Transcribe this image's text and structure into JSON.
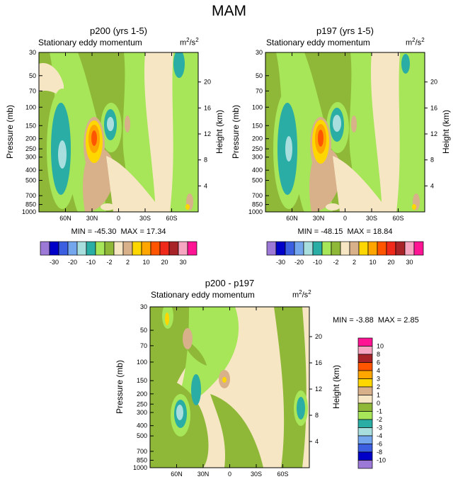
{
  "figure": {
    "title": "MAM"
  },
  "palette": [
    "#9c79d6",
    "#0000c8",
    "#3b5fe0",
    "#74a6ee",
    "#a9dede",
    "#2aada5",
    "#a6e658",
    "#8fb838",
    "#f6e6c4",
    "#d8b08a",
    "#ffd700",
    "#ffa500",
    "#ff5500",
    "#f02a1b",
    "#a82327",
    "#f7a6c2",
    "#ff1493"
  ],
  "chart_data": [
    {
      "type": "heatmap",
      "id": "p200",
      "title": "p200 (yrs 1-5)",
      "left_string": "Stationary eddy momentum",
      "units": "m2/s2",
      "units_base": "m",
      "units_exp": "2",
      "units_mid": "/s",
      "units_exp2": "2",
      "xlabel": "",
      "ylabel": "Pressure (mb)",
      "y2label": "Height (km)",
      "x_ticks": [
        "60N",
        "30N",
        "0",
        "30S",
        "60S"
      ],
      "x_values": [
        60,
        30,
        0,
        -30,
        -60
      ],
      "xlim": [
        90,
        -90
      ],
      "y_ticks": [
        "30",
        "50",
        "70",
        "100",
        "150",
        "200",
        "250",
        "300",
        "400",
        "500",
        "700",
        "850",
        "1000"
      ],
      "y_values": [
        30,
        50,
        70,
        100,
        150,
        200,
        250,
        300,
        400,
        500,
        700,
        850,
        1000
      ],
      "ylim": [
        1000,
        30
      ],
      "height_ticks": [
        "20",
        "16",
        "12",
        "8",
        "4"
      ],
      "height_values": [
        20,
        16,
        12,
        8,
        4
      ],
      "min": -45.3,
      "max": 17.34,
      "min_label": "MIN = -45.30",
      "max_label": "MAX =  17.34",
      "features": [
        {
          "lat": 65,
          "p": 250,
          "value": -10
        },
        {
          "lat": 28,
          "p": 200,
          "value": 20
        },
        {
          "lat": 15,
          "p": 150,
          "value": -10
        }
      ]
    },
    {
      "type": "heatmap",
      "id": "p197",
      "title": "p197 (yrs 1-5)",
      "left_string": "Stationary eddy momentum",
      "units": "m2/s2",
      "units_base": "m",
      "units_exp": "2",
      "units_mid": "/s",
      "units_exp2": "2",
      "xlabel": "",
      "ylabel": "Pressure (mb)",
      "y2label": "Height (km)",
      "x_ticks": [
        "60N",
        "30N",
        "0",
        "30S",
        "60S"
      ],
      "x_values": [
        60,
        30,
        0,
        -30,
        -60
      ],
      "xlim": [
        90,
        -90
      ],
      "y_ticks": [
        "30",
        "50",
        "70",
        "100",
        "150",
        "200",
        "250",
        "300",
        "400",
        "500",
        "700",
        "850",
        "1000"
      ],
      "y_values": [
        30,
        50,
        70,
        100,
        150,
        200,
        250,
        300,
        400,
        500,
        700,
        850,
        1000
      ],
      "ylim": [
        1000,
        30
      ],
      "height_ticks": [
        "20",
        "16",
        "12",
        "8",
        "4"
      ],
      "height_values": [
        20,
        16,
        12,
        8,
        4
      ],
      "min": -48.15,
      "max": 18.84,
      "min_label": "MIN = -48.15",
      "max_label": "MAX =  18.84",
      "features": [
        {
          "lat": 65,
          "p": 250,
          "value": -10
        },
        {
          "lat": 28,
          "p": 200,
          "value": 20
        },
        {
          "lat": 15,
          "p": 150,
          "value": -10
        }
      ]
    },
    {
      "type": "heatmap",
      "id": "diff",
      "title": "p200 - p197",
      "left_string": "Stationary eddy momentum",
      "units": "m2/s2",
      "units_base": "m",
      "units_exp": "2",
      "units_mid": "/s",
      "units_exp2": "2",
      "xlabel": "",
      "ylabel": "Pressure (mb)",
      "y2label": "Height (km)",
      "x_ticks": [
        "60N",
        "30N",
        "0",
        "30S",
        "60S"
      ],
      "x_values": [
        60,
        30,
        0,
        -30,
        -60
      ],
      "xlim": [
        90,
        -90
      ],
      "y_ticks": [
        "30",
        "50",
        "70",
        "100",
        "150",
        "200",
        "250",
        "300",
        "400",
        "500",
        "700",
        "850",
        "1000"
      ],
      "y_values": [
        30,
        50,
        70,
        100,
        150,
        200,
        250,
        300,
        400,
        500,
        700,
        850,
        1000
      ],
      "ylim": [
        1000,
        30
      ],
      "height_ticks": [
        "20",
        "16",
        "12",
        "8",
        "4"
      ],
      "height_values": [
        20,
        16,
        12,
        8,
        4
      ],
      "min": -3.88,
      "max": 2.85,
      "min_label": "MIN =  -3.88",
      "max_label": "MAX =   2.85",
      "features": [
        {
          "lat": 65,
          "p": 300,
          "value": -4
        },
        {
          "lat": 42,
          "p": 200,
          "value": -3
        },
        {
          "lat": 10,
          "p": 170,
          "value": 2
        },
        {
          "lat": -75,
          "p": 300,
          "value": -3
        }
      ]
    }
  ],
  "colorbar_top": {
    "labels": [
      "-30",
      "-20",
      "-10",
      "-2",
      "2",
      "10",
      "20",
      "30"
    ]
  },
  "colorbar_diff": {
    "labels": [
      "10",
      "8",
      "6",
      "4",
      "3",
      "2",
      "1",
      "0",
      "-1",
      "-2",
      "-3",
      "-4",
      "-6",
      "-8",
      "-10"
    ]
  }
}
